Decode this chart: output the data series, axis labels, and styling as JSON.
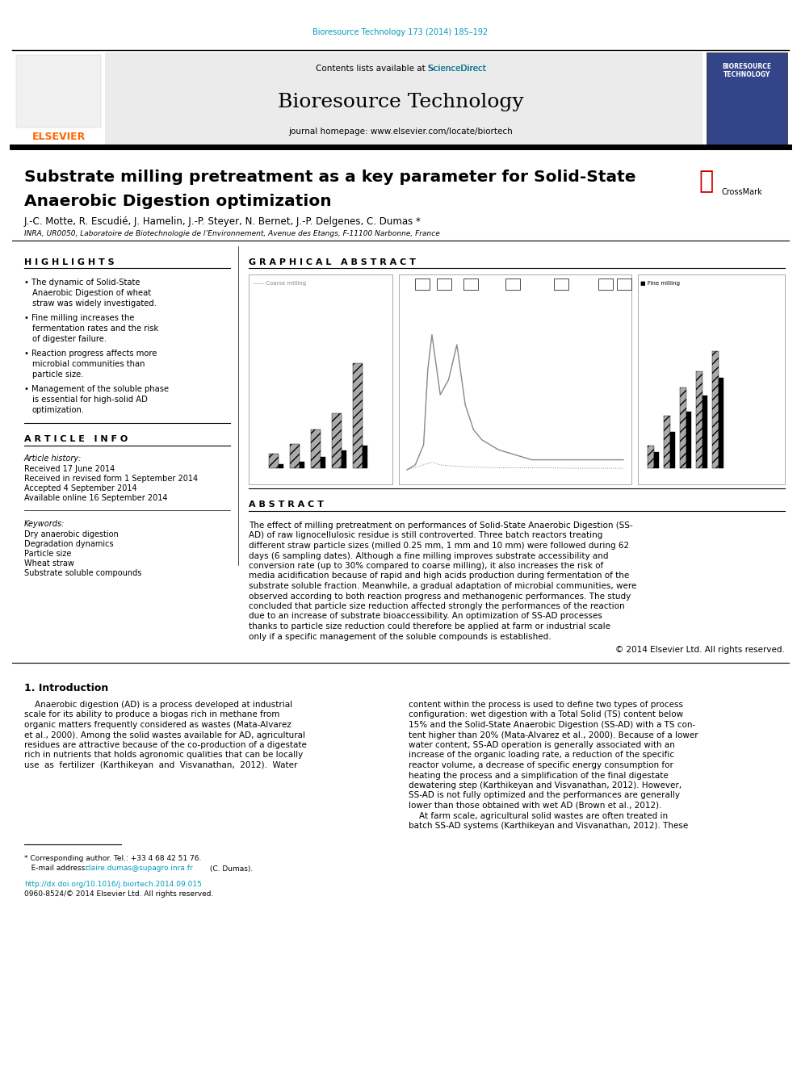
{
  "background_color": "#ffffff",
  "page_width": 9.92,
  "page_height": 13.23,
  "dpi": 100,
  "journal_ref": "Bioresource Technology 173 (2014) 185–192",
  "journal_ref_color": "#0099BB",
  "journal_name": "Bioresource Technology",
  "journal_homepage": "journal homepage: www.elsevier.com/locate/biortech",
  "contents_text": "Contents lists available at ",
  "sciencedirect_text": "ScienceDirect",
  "sciencedirect_color": "#0099BB",
  "title_line1": "Substrate milling pretreatment as a key parameter for Solid-State",
  "title_line2": "Anaerobic Digestion optimization",
  "authors": "J.-C. Motte, R. Escudié, J. Hamelin, J.-P. Steyer, N. Bernet, J.-P. Delgenes, C. Dumas",
  "affiliation": "INRA, UR0050, Laboratoire de Biotechnologie de l’Environnement, Avenue des Etangs, F-11100 Narbonne, France",
  "highlights_title": "H I G H L I G H T S",
  "highlights": [
    "The dynamic of Solid-State Anaerobic Digestion of wheat straw was widely investigated.",
    "Fine milling increases the fermentation rates and the risk of digester failure.",
    "Reaction progress affects more microbial communities than particle size.",
    "Management of the soluble phase is essential for high-solid AD optimization."
  ],
  "graphical_abstract_title": "G R A P H I C A L   A B S T R A C T",
  "article_info_title": "A R T I C L E   I N F O",
  "article_history_label": "Article history:",
  "received": "Received 17 June 2014",
  "revised": "Received in revised form 1 September 2014",
  "accepted": "Accepted 4 September 2014",
  "available": "Available online 16 September 2014",
  "keywords_label": "Keywords:",
  "keywords": [
    "Dry anaerobic digestion",
    "Degradation dynamics",
    "Particle size",
    "Wheat straw",
    "Substrate soluble compounds"
  ],
  "abstract_title": "A B S T R A C T",
  "abstract_text": "The effect of milling pretreatment on performances of Solid-State Anaerobic Digestion (SS-AD) of raw lignocellulosic residue is still controverted. Three batch reactors treating different straw particle sizes (milled 0.25 mm, 1 mm and 10 mm) were followed during 62 days (6 sampling dates). Although a fine milling improves substrate accessibility and conversion rate (up to 30% compared to coarse milling), it also increases the risk of media acidification because of rapid and high acids production during fermentation of the substrate soluble fraction. Meanwhile, a gradual adaptation of microbial communities, were observed according to both reaction progress and methanogenic performances. The study concluded that particle size reduction affected strongly the performances of the reaction due to an increase of substrate bioaccessibility. An optimization of SS-AD processes thanks to particle size reduction could therefore be applied at farm or industrial scale only if a specific management of the soluble compounds is established.",
  "copyright_abstract": "© 2014 Elsevier Ltd. All rights reserved.",
  "intro_title": "1. Introduction",
  "intro_col1_lines": [
    "    Anaerobic digestion (AD) is a process developed at industrial",
    "scale for its ability to produce a biogas rich in methane from",
    "organic matters frequently considered as wastes (Mata-Alvarez",
    "et al., 2000). Among the solid wastes available for AD, agricultural",
    "residues are attractive because of the co-production of a digestate",
    "rich in nutrients that holds agronomic qualities that can be locally",
    "use  as  fertilizer  (Karthikeyan  and  Visvanathan,  2012).  Water"
  ],
  "intro_col2_lines": [
    "content within the process is used to define two types of process",
    "configuration: wet digestion with a Total Solid (TS) content below",
    "15% and the Solid-State Anaerobic Digestion (SS-AD) with a TS con-",
    "tent higher than 20% (Mata-Alvarez et al., 2000). Because of a lower",
    "water content, SS-AD operation is generally associated with an",
    "increase of the organic loading rate, a reduction of the specific",
    "reactor volume, a decrease of specific energy consumption for",
    "heating the process and a simplification of the final digestate",
    "dewatering step (Karthikeyan and Visvanathan, 2012). However,",
    "SS-AD is not fully optimized and the performances are generally",
    "lower than those obtained with wet AD (Brown et al., 2012).",
    "    At farm scale, agricultural solid wastes are often treated in",
    "batch SS-AD systems (Karthikeyan and Visvanathan, 2012). These"
  ],
  "footnote_star": "* Corresponding author. Tel.: +33 4 68 42 51 76.",
  "footnote_email_prefix": "   E-mail address: ",
  "footnote_email": "claire.dumas@supagro.inra.fr",
  "footnote_email_suffix": " (C. Dumas).",
  "footnote_doi": "http://dx.doi.org/10.1016/j.biortech.2014.09.015",
  "footnote_issn": "0960-8524/© 2014 Elsevier Ltd. All rights reserved.",
  "link_color": "#0099BB",
  "elsevier_color": "#FF6600",
  "cover_color": "#334488"
}
